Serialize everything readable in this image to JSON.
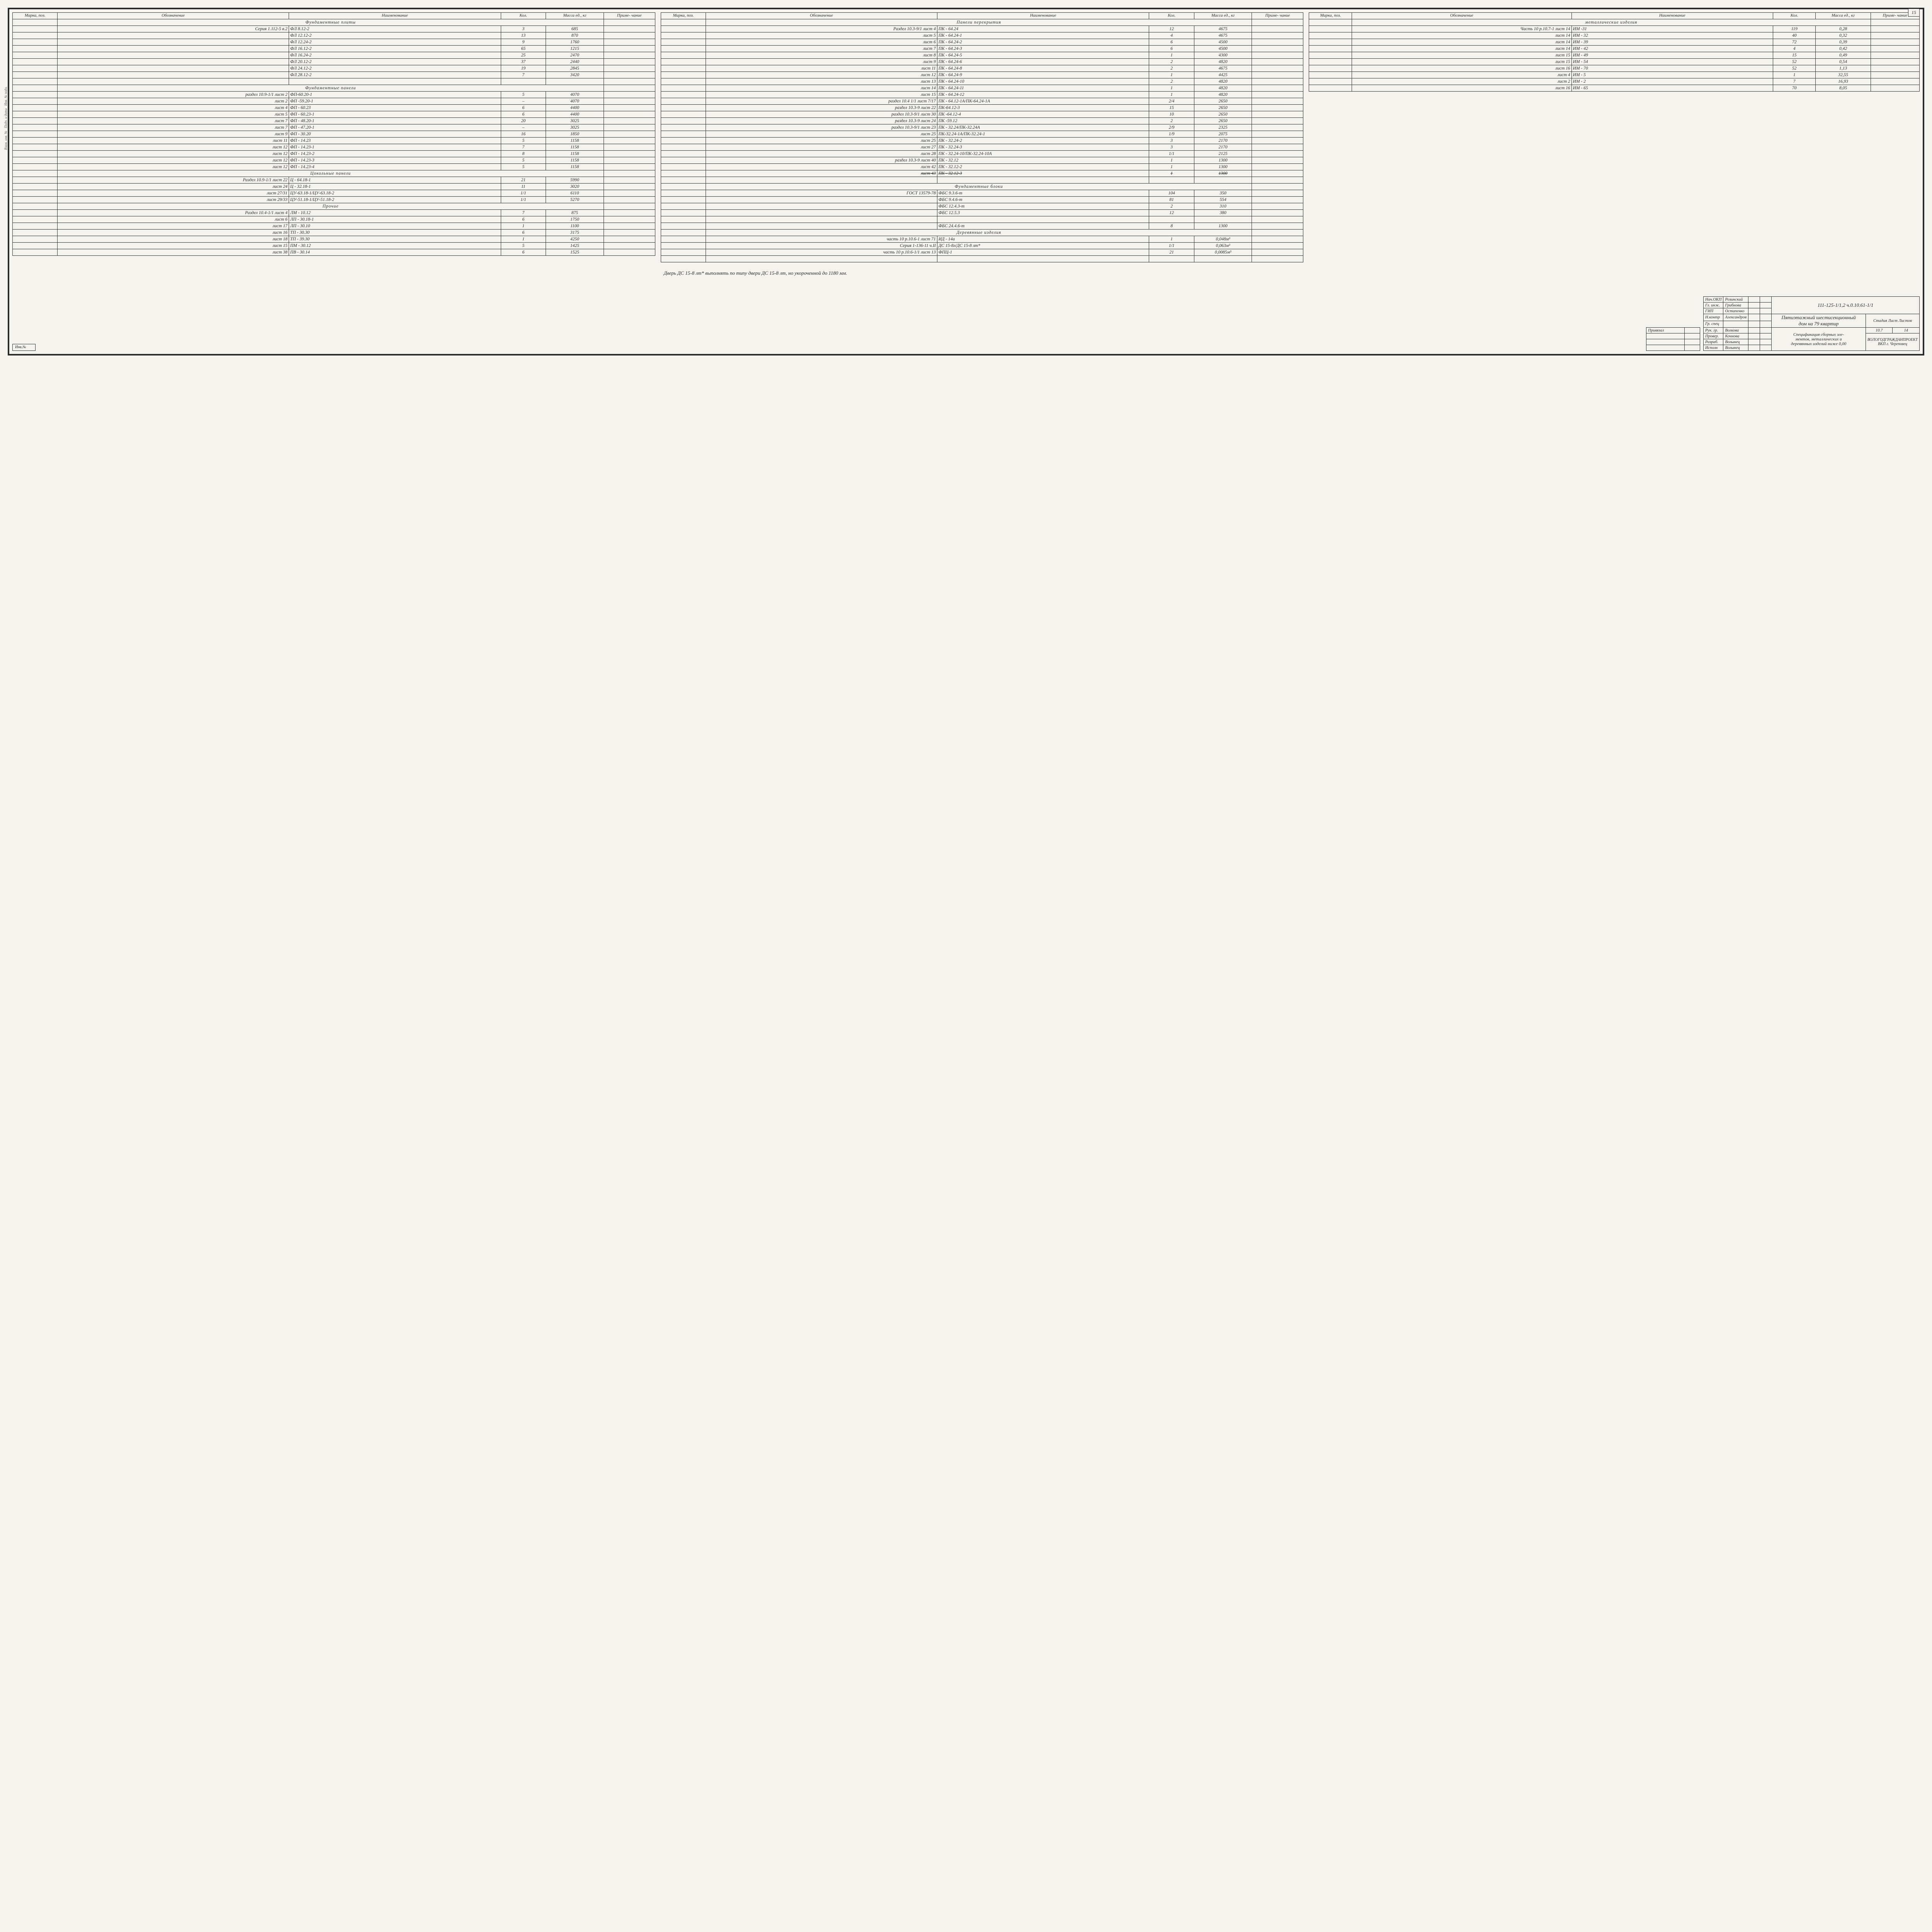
{
  "pageNumber": "15",
  "headers": {
    "mark": "Марка, поз.",
    "desig": "Обозначение",
    "name": "Наименование",
    "qty": "Кол.",
    "mass": "Масса ед., кг",
    "note": "Приме- чание"
  },
  "col1": {
    "sections": [
      {
        "title": "Фундаментные плиты",
        "rows": [
          {
            "d": "Серия 1.112-5 в.2",
            "n": "ФЛ 8.12-2",
            "q": "3",
            "m": "685"
          },
          {
            "d": "",
            "n": "ФЛ 12.12-2",
            "q": "13",
            "m": "870"
          },
          {
            "d": "",
            "n": "ФЛ 12.24-2",
            "q": "9",
            "m": "1760"
          },
          {
            "d": "",
            "n": "ФЛ 16.12-2",
            "q": "65",
            "m": "1215"
          },
          {
            "d": "",
            "n": "ФЛ 16.24-2",
            "q": "25",
            "m": "2470"
          },
          {
            "d": "",
            "n": "ФЛ 20.12-2",
            "q": "37",
            "m": "2440"
          },
          {
            "d": "",
            "n": "ФЛ 24.12-2",
            "q": "19",
            "m": "2845"
          },
          {
            "d": "",
            "n": "ФЛ 28.12-2",
            "q": "7",
            "m": "3420"
          },
          {
            "d": "",
            "n": "",
            "q": "",
            "m": ""
          }
        ]
      },
      {
        "title": "Фундаментные панели",
        "rows": [
          {
            "d": "раздел 10.9-1/1 лист 2",
            "n": "ФП-60.20-1",
            "q": "5",
            "m": "4070"
          },
          {
            "d": "лист 2",
            "n": "ФП -59.20-1",
            "q": "–",
            "m": "4070"
          },
          {
            "d": "лист 4",
            "n": "ФП - 60.23",
            "q": "6",
            "m": "4400"
          },
          {
            "d": "лист 5",
            "n": "ФП - 60.23-1",
            "q": "6",
            "m": "4400"
          },
          {
            "d": "лист 7",
            "n": "ФП - 48.20-1",
            "q": "20",
            "m": "3025"
          },
          {
            "d": "лист 7",
            "n": "ФП - 47.20-1",
            "q": "–",
            "m": "3025"
          },
          {
            "d": "лист 9",
            "n": "ФП - 30.20",
            "q": "16",
            "m": "1850"
          },
          {
            "d": "лист 11",
            "n": "ФП - 14.23",
            "q": "5",
            "m": "1158"
          },
          {
            "d": "лист 12",
            "n": "ФП - 14.23-1",
            "q": "7",
            "m": "1158"
          },
          {
            "d": "лист 12",
            "n": "ФП - 14.23-2",
            "q": "8",
            "m": "1158"
          },
          {
            "d": "лист 12",
            "n": "ФП - 14.23-3",
            "q": "5",
            "m": "1158"
          },
          {
            "d": "лист 12",
            "n": "ФП - 14.23-4",
            "q": "5",
            "m": "1158"
          }
        ]
      },
      {
        "title": "Цокольные панели",
        "rows": [
          {
            "d": "Раздел 10.9-1/1 лист 22",
            "n": "Ц - 64.18-1",
            "q": "21",
            "m": "5990"
          },
          {
            "d": "лист 24",
            "n": "Ц - 32.18-1",
            "q": "11",
            "m": "3020"
          },
          {
            "d": "лист 27/31",
            "n": "ЦУ-63.18-1/ЦУ-63.18-2",
            "q": "1/1",
            "m": "6110"
          },
          {
            "d": "лист 29/33",
            "n": "ЦУ-51.18-1/ЦУ-51.18-2",
            "q": "1/1",
            "m": "5270"
          }
        ]
      },
      {
        "title": "Прочие",
        "rows": [
          {
            "d": "Раздел 10.4-1/1 лист 4",
            "n": "ЛМ - 10.12",
            "q": "7",
            "m": "875"
          },
          {
            "d": "лист 6",
            "n": "ЛП - 30.18-1",
            "q": "6",
            "m": "1750"
          },
          {
            "d": "лист 17",
            "n": "ЛП - 30.10",
            "q": "1",
            "m": "1100"
          },
          {
            "d": "лист 16",
            "n": "ТП - 30.30",
            "q": "6",
            "m": "3175"
          },
          {
            "d": "лист 18",
            "n": "ТП - 39.30",
            "q": "1",
            "m": "4250"
          },
          {
            "d": "лист 15",
            "n": "ПМ - 30.12",
            "q": "5",
            "m": "1425"
          },
          {
            "d": "лист 38",
            "n": "ПВ - 30.14",
            "q": "6",
            "m": "1525"
          }
        ]
      }
    ]
  },
  "col2": {
    "sections": [
      {
        "title": "Панели перекрытия",
        "rows": [
          {
            "d": "Раздел 10.3-9/1 лист 4",
            "n": "ПК - 64.24",
            "q": "12",
            "m": "4675"
          },
          {
            "d": "лист 5",
            "n": "ПК - 64.24-1",
            "q": "4",
            "m": "4675"
          },
          {
            "d": "лист 6",
            "n": "ПК - 64.24-2",
            "q": "6",
            "m": "4500"
          },
          {
            "d": "лист 7",
            "n": "ПК - 64.24-3",
            "q": "6",
            "m": "4500"
          },
          {
            "d": "лист 8",
            "n": "ПК - 64.24-5",
            "q": "1",
            "m": "4300"
          },
          {
            "d": "лист 9",
            "n": "ПК - 64.24-6",
            "q": "2",
            "m": "4820"
          },
          {
            "d": "лист 11",
            "n": "ПК - 64.24-8",
            "q": "2",
            "m": "4675"
          },
          {
            "d": "лист 12",
            "n": "ПК - 64.24-9",
            "q": "1",
            "m": "4425"
          },
          {
            "d": "лист 13",
            "n": "ПК - 64.24-10",
            "q": "2",
            "m": "4820"
          },
          {
            "d": "лист 14",
            "n": "ПК - 64.24-11",
            "q": "1",
            "m": "4820"
          },
          {
            "d": "лист 15",
            "n": "ПК - 64.24-12",
            "q": "1",
            "m": "4820"
          },
          {
            "d": "раздел 10.4 1/1 лист 7/17",
            "n": "ПК - 64.12-1А/ПК-64.24-1А",
            "q": "2/4",
            "m": "2650"
          },
          {
            "d": "раздел 10.3-9 лист 22",
            "n": "ПК-64.12-3",
            "q": "15",
            "m": "2650"
          },
          {
            "d": "раздел 10.3-9/1 лист 30",
            "n": "ПК -64.12-4",
            "q": "10",
            "m": "2650"
          },
          {
            "d": "раздел 10.3-9 лист 24",
            "n": "ПК -59.12",
            "q": "2",
            "m": "2650"
          },
          {
            "d": "раздел 10.3-9/1 лист 23",
            "n": "ПК - 32.24/ПК-32.24А",
            "q": "2/9",
            "m": "2325"
          },
          {
            "d": "лист 25",
            "n": "ПК-32.24-1А/ПК-32.24-1",
            "q": "1/9",
            "m": "2075"
          },
          {
            "d": "лист 25",
            "n": "ПК - 32.24-2",
            "q": "3",
            "m": "2170"
          },
          {
            "d": "лист 27",
            "n": "ПК - 32.24-3",
            "q": "3",
            "m": "2170"
          },
          {
            "d": "лист 28",
            "n": "ПК - 32.24-10/ПК-32.24-10А",
            "q": "1/1",
            "m": "2125"
          },
          {
            "d": "раздел 10.3-9 лист 40",
            "n": "ПК - 32.12",
            "q": "1",
            "m": "1300"
          },
          {
            "d": "лист 42",
            "n": "ПК - 32.12-2",
            "q": "1",
            "m": "1300"
          },
          {
            "d": "лист 43",
            "n": "ПК - 32.12-3",
            "q": "1",
            "m": "1300",
            "struck": true
          },
          {
            "d": "",
            "n": "",
            "q": "",
            "m": ""
          }
        ]
      },
      {
        "title": "Фундаментные блоки",
        "rows": [
          {
            "d": "ГОСТ 13579-78",
            "n": "ФБС 9.3.6-т",
            "q": "104",
            "m": "350"
          },
          {
            "d": "",
            "n": "ФБС 9.4.6-т",
            "q": "81",
            "m": "554"
          },
          {
            "d": "",
            "n": "ФБС 12.4.3-т",
            "q": "2",
            "m": "310"
          },
          {
            "d": "",
            "n": "ФБС 12.5.3",
            "q": "12",
            "m": "380"
          },
          {
            "d": "",
            "n": "",
            "q": "",
            "m": ""
          },
          {
            "d": "",
            "n": "ФБС 24.4.6-т",
            "q": "8",
            "m": "1300"
          }
        ]
      },
      {
        "title": "Деревянные изделия",
        "rows": [
          {
            "d": "часть 10 р.10.6-1 лист 71",
            "n": "ИД - 14а",
            "q": "1",
            "m": "0,048м³"
          },
          {
            "d": "Серия 1-136-11 ч.II",
            "n": "ДС 15-8л/ДС 15-8 лт*",
            "q": "1/1",
            "m": "0,063м³"
          },
          {
            "d": "часть 10 р.10.6-1/1 лист 13",
            "n": "ФПЦ-1",
            "q": "21",
            "m": "0,0085м³"
          },
          {
            "d": "",
            "n": "",
            "q": "",
            "m": ""
          }
        ]
      }
    ]
  },
  "col3": {
    "sections": [
      {
        "title": "металлические изделия",
        "rows": [
          {
            "d": "Часть 10 р.10.7-1 лист 14",
            "n": "ИМ -31",
            "q": "119",
            "m": "0,28"
          },
          {
            "d": "лист 14",
            "n": "ИМ - 32",
            "q": "40",
            "m": "0,32"
          },
          {
            "d": "лист 14",
            "n": "ИМ - 39",
            "q": "72",
            "m": "0,39"
          },
          {
            "d": "лист 14",
            "n": "ИМ - 42",
            "q": "4",
            "m": "0,42"
          },
          {
            "d": "лист 15",
            "n": "ИМ - 49",
            "q": "15",
            "m": "0,49"
          },
          {
            "d": "лист 15",
            "n": "ИМ - 54",
            "q": "52",
            "m": "0,54"
          },
          {
            "d": "лист 16",
            "n": "ИМ - 70",
            "q": "52",
            "m": "1,13"
          },
          {
            "d": "лист 4",
            "n": "ИМ - 5",
            "q": "1",
            "m": "32,55"
          },
          {
            "d": "лист 2",
            "n": "ИМ - 2",
            "q": "7",
            "m": "16,93"
          },
          {
            "d": "лист 16",
            "n": "ИМ - 65",
            "q": "70",
            "m": "8,05"
          }
        ]
      }
    ]
  },
  "note": "Дверь ДС 15-8 лт* выполнять по типу двери ДС 15-8 лт, но укороченной до 1180 мм.",
  "titleBlock": {
    "code": "111-125-1/1,2  ч.0.10.61-1/1",
    "line1": "Пятиэтажный шестисекционный",
    "line2": "дом на 79 квартир",
    "desc1": "Спецификация сборных эле-",
    "desc2": "ментов, металлических и",
    "desc3": "деревянных изделий ниже 0,00",
    "org1": "ВОЛОГОДГРАЖДАНПРОЕКТ",
    "org2": "ВКП г. Череповец",
    "stage": "Стадия",
    "sheet": "Лист",
    "sheets": "Листов",
    "sheetN": "10.7",
    "sheetsN": "14",
    "roles": [
      {
        "r": "Нач.ОКП",
        "n": "Розинский"
      },
      {
        "r": "Гл. инж.",
        "n": "Грибнова"
      },
      {
        "r": "ГИП",
        "n": "Остапенко"
      },
      {
        "r": "Н.контр",
        "n": "Александров"
      },
      {
        "r": "Гр. спец",
        "n": ""
      },
      {
        "r": "Рук. гр.",
        "n": "Волкова"
      },
      {
        "r": "Провер.",
        "n": "Кочнова"
      },
      {
        "r": "Разраб.",
        "n": "Волынец"
      },
      {
        "r": "Исполн",
        "n": "Волынец"
      }
    ],
    "privLabel": "Привязал",
    "invLabel": "Инв.№"
  }
}
